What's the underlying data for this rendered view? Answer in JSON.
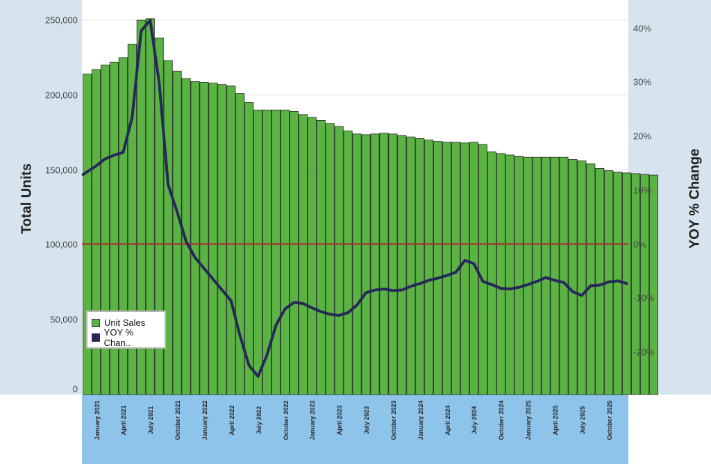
{
  "chart_data": {
    "type": "bar",
    "title": "",
    "ylabel": "Total Units",
    "y2label": "YOY % Change",
    "ylim": [
      0,
      250000
    ],
    "y2lim": [
      -27,
      43
    ],
    "yticks": [
      "0",
      "50,000",
      "100,000",
      "150,000",
      "200,000",
      "250,000"
    ],
    "y2ticks": [
      "-20%",
      "-10%",
      "0%",
      "10%",
      "20%",
      "30%",
      "40%"
    ],
    "xtick_labels": [
      "January 2021",
      "April 2021",
      "July 2021",
      "October 2021",
      "January 2022",
      "April 2022",
      "July 2022",
      "October 2022",
      "January 2023",
      "April 2023",
      "July 2023",
      "October 2023",
      "January 2024",
      "April 2024",
      "July 2024",
      "October 2024",
      "January 2025",
      "April 2025",
      "July 2025",
      "October 2025"
    ],
    "legend": {
      "position": "bottom-left",
      "entries": [
        "Unit Sales",
        "YOY % Chan.."
      ]
    },
    "reference_line": {
      "axis": "y2",
      "value": 0,
      "color": "#a3312a"
    },
    "colors": {
      "bars": "#5bb344",
      "bar_edge": "#2b3a2a",
      "line": "#252859",
      "grid": "#e6e6e6"
    },
    "series": [
      {
        "name": "Unit Sales",
        "type": "bar",
        "axis": "y",
        "values": [
          214000,
          217000,
          220000,
          222000,
          225000,
          234000,
          250000,
          251000,
          238000,
          223000,
          216000,
          211000,
          209000,
          208500,
          208000,
          207000,
          206000,
          201000,
          195000,
          190000,
          190000,
          190000,
          190000,
          189000,
          187000,
          185000,
          183000,
          181000,
          179000,
          176000,
          174000,
          173500,
          174000,
          174500,
          174000,
          173000,
          172000,
          171000,
          170000,
          169000,
          168500,
          168500,
          168000,
          168500,
          167000,
          162000,
          161000,
          160000,
          159000,
          158500,
          158500,
          158500,
          158500,
          158500,
          157000,
          156000,
          154000,
          151000,
          149500,
          148500,
          148000,
          147500,
          147000,
          146500
        ]
      },
      {
        "name": "YOY % Change",
        "type": "line",
        "axis": "y2",
        "values": [
          12.9,
          14.5,
          15.8,
          16.5,
          17.0,
          23.5,
          39.5,
          41.5,
          30.0,
          11.0,
          6.0,
          0.5,
          -2.5,
          -4.5,
          -6.5,
          -8.5,
          -10.5,
          -17.0,
          -22.5,
          -24.5,
          -20.5,
          -15.0,
          -12.0,
          -10.8,
          -11.0,
          -11.8,
          -12.5,
          -13.0,
          -13.2,
          -12.7,
          -11.3,
          -9.0,
          -8.5,
          -8.3,
          -8.6,
          -8.5,
          -7.8,
          -7.3,
          -6.7,
          -6.3,
          -5.8,
          -5.2,
          -3.0,
          -3.6,
          -6.9,
          -7.5,
          -8.2,
          -8.3,
          -8.0,
          -7.5,
          -6.9,
          -6.2,
          -6.7,
          -7.1,
          -8.8,
          -9.5,
          -7.7,
          -7.6,
          -7.0,
          -6.8,
          -7.3
        ]
      }
    ]
  }
}
